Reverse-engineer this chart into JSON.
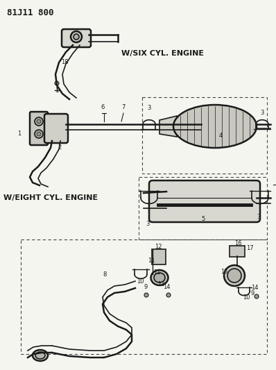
{
  "title": "81J11 800",
  "bg_color": "#f5f5f0",
  "line_color": "#1a1a1a",
  "text_color": "#1a1a1a",
  "dashed_color": "#444444",
  "label_six_cyl": "W/SIX CYL. ENGINE",
  "label_eight_cyl": "W/EIGHT CYL. ENGINE",
  "figsize": [
    3.98,
    5.33
  ],
  "dpi": 100
}
